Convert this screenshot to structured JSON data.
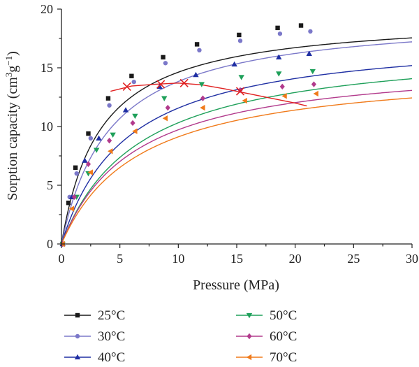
{
  "chart_data": {
    "type": "line",
    "title": "",
    "xlabel": "Pressure (MPa)",
    "ylabel_main": "Sorption capacity (cm",
    "ylabel_sup1": "3",
    "ylabel_mid": "g",
    "ylabel_sup2": "−1",
    "ylabel_end": ")",
    "xlim": [
      0,
      30
    ],
    "ylim": [
      0,
      20
    ],
    "xticks": [
      "0",
      "5",
      "10",
      "15",
      "20",
      "25",
      "30"
    ],
    "yticks": [
      "0",
      "5",
      "10",
      "15",
      "20"
    ],
    "grid": false,
    "legend_position": "bottom",
    "series": [
      {
        "name": "25°C",
        "color": "#1a1a1a",
        "marker": "square",
        "points": [
          [
            0.1,
            0
          ],
          [
            0.6,
            3.5
          ],
          [
            1.2,
            6.5
          ],
          [
            2.3,
            9.4
          ],
          [
            4.0,
            12.4
          ],
          [
            6.0,
            14.3
          ],
          [
            8.7,
            15.9
          ],
          [
            11.6,
            17.0
          ],
          [
            15.2,
            17.8
          ],
          [
            18.5,
            18.4
          ],
          [
            20.5,
            18.6
          ]
        ],
        "fit": {
          "qmax": 19.5,
          "b": 0.3
        }
      },
      {
        "name": "30°C",
        "color": "#7b78c9",
        "marker": "circle",
        "points": [
          [
            0.1,
            0
          ],
          [
            0.7,
            4.0
          ],
          [
            1.3,
            6.0
          ],
          [
            2.5,
            9.0
          ],
          [
            4.1,
            11.8
          ],
          [
            6.2,
            13.8
          ],
          [
            8.9,
            15.4
          ],
          [
            11.8,
            16.5
          ],
          [
            15.3,
            17.3
          ],
          [
            18.7,
            17.9
          ],
          [
            21.3,
            18.1
          ]
        ],
        "fit": {
          "qmax": 19.6,
          "b": 0.24
        }
      },
      {
        "name": "40°C",
        "color": "#1f2fa3",
        "marker": "triangle-up",
        "points": [
          [
            0.1,
            0
          ],
          [
            0.9,
            4.0
          ],
          [
            2.0,
            7.1
          ],
          [
            3.2,
            9.0
          ],
          [
            5.5,
            11.4
          ],
          [
            8.4,
            13.4
          ],
          [
            11.5,
            14.4
          ],
          [
            14.8,
            15.3
          ],
          [
            18.6,
            15.9
          ],
          [
            21.2,
            16.2
          ]
        ],
        "fit": {
          "qmax": 18.0,
          "b": 0.18
        }
      },
      {
        "name": "50°C",
        "color": "#1fa05a",
        "marker": "triangle-down",
        "points": [
          [
            0.1,
            0
          ],
          [
            1.3,
            4.0
          ],
          [
            2.3,
            6.0
          ],
          [
            3.0,
            8.0
          ],
          [
            4.4,
            9.3
          ],
          [
            6.3,
            10.9
          ],
          [
            8.8,
            12.4
          ],
          [
            12.0,
            13.6
          ],
          [
            15.4,
            14.2
          ],
          [
            18.6,
            14.5
          ],
          [
            21.5,
            14.7
          ]
        ],
        "fit": {
          "qmax": 17.2,
          "b": 0.15
        }
      },
      {
        "name": "60°C",
        "color": "#b23a8c",
        "marker": "diamond",
        "points": [
          [
            0.1,
            0
          ],
          [
            1.1,
            4.0
          ],
          [
            2.3,
            6.8
          ],
          [
            4.1,
            8.8
          ],
          [
            6.1,
            10.3
          ],
          [
            9.1,
            11.6
          ],
          [
            12.1,
            12.4
          ],
          [
            15.3,
            13.1
          ],
          [
            18.9,
            13.4
          ],
          [
            21.6,
            13.6
          ]
        ],
        "fit": {
          "qmax": 15.8,
          "b": 0.16
        }
      },
      {
        "name": "70°C",
        "color": "#f07a1a",
        "marker": "triangle-left",
        "points": [
          [
            0.1,
            0
          ],
          [
            0.9,
            3.0
          ],
          [
            2.5,
            6.1
          ],
          [
            4.2,
            7.9
          ],
          [
            6.3,
            9.6
          ],
          [
            8.9,
            10.7
          ],
          [
            12.1,
            11.6
          ],
          [
            15.7,
            12.2
          ],
          [
            19.1,
            12.6
          ],
          [
            21.8,
            12.8
          ]
        ],
        "fit": {
          "qmax": 15.2,
          "b": 0.15
        }
      }
    ],
    "extra_curve": {
      "color": "#e02020",
      "marker": "x",
      "points": [
        [
          5.6,
          13.4
        ],
        [
          8.5,
          13.6
        ],
        [
          10.5,
          13.7
        ],
        [
          15.3,
          13.0
        ]
      ],
      "line": [
        [
          4.2,
          13.0
        ],
        [
          6.0,
          13.45
        ],
        [
          8.0,
          13.6
        ],
        [
          10.0,
          13.7
        ],
        [
          12.0,
          13.55
        ],
        [
          14.0,
          13.2
        ],
        [
          16.0,
          12.8
        ],
        [
          18.0,
          12.4
        ],
        [
          20.0,
          12.0
        ],
        [
          21.0,
          11.75
        ]
      ]
    }
  }
}
